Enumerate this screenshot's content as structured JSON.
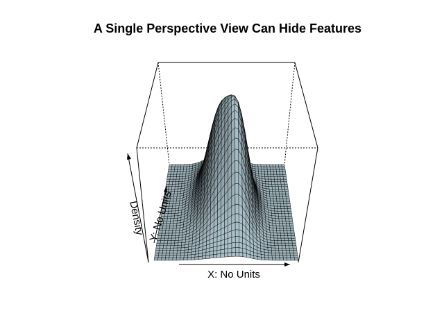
{
  "chart_data": {
    "type": "surface",
    "title": "A Single Perspective View Can Hide Features",
    "xlabel": "X: No Units",
    "ylabel": "Y: No Units",
    "zlabel": "Density",
    "axes": "arrows-only, no tick marks or tick labels",
    "box": "full wireframe box, hidden back edges dashed",
    "surface_color": "#a3b8c0",
    "mesh_color": "#000000",
    "shading": "light from above-front",
    "grid": {
      "x_lines": 40,
      "y_lines": 40
    },
    "surface": {
      "x_range": [
        -3,
        3
      ],
      "y_range": [
        -3,
        3
      ],
      "z_range": [
        0,
        0.16
      ],
      "components": [
        {
          "weight": 1.0,
          "mean": [
            -0.3,
            0.5
          ],
          "sd": [
            0.6,
            1.3
          ]
        },
        {
          "weight": 0.55,
          "mean": [
            0.6,
            -0.2
          ],
          "sd": [
            0.45,
            1.1
          ]
        }
      ]
    }
  },
  "colors": {
    "background": "#ffffff",
    "surface": "#a3b8c0",
    "lines": "#000000"
  }
}
